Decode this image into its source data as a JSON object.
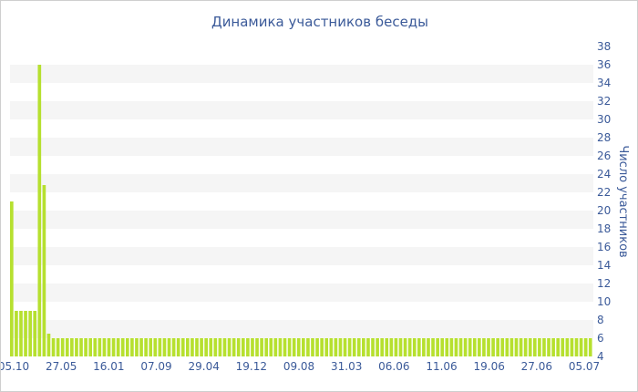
{
  "chart_data": {
    "type": "bar",
    "title": "Динамика участников беседы",
    "xlabel": "",
    "ylabel": "Число участников",
    "ylim": [
      4,
      38
    ],
    "yticks": [
      4,
      6,
      8,
      10,
      12,
      14,
      16,
      18,
      20,
      22,
      24,
      26,
      28,
      30,
      32,
      34,
      36,
      38
    ],
    "x_tick_labels": [
      "05.10",
      "27.05",
      "16.01",
      "07.09",
      "29.04",
      "19.12",
      "09.08",
      "31.03",
      "06.06",
      "11.06",
      "19.06",
      "27.06",
      "05.07"
    ],
    "grid": true,
    "legend": "none",
    "bar_color": "#b6e02f",
    "band_color": "#f5f5f5",
    "text_color": "#3b5a99",
    "series": [
      {
        "values": [
          21,
          9,
          9,
          9,
          9,
          9,
          36,
          22.8,
          6.5,
          6,
          6,
          6,
          6,
          6,
          6,
          6,
          6,
          6,
          6,
          6,
          6,
          6,
          6,
          6,
          6,
          6,
          6,
          6,
          6,
          6,
          6,
          6,
          6,
          6,
          6,
          6,
          6,
          6,
          6,
          6,
          6,
          6,
          6,
          6,
          6,
          6,
          6,
          6,
          6,
          6,
          6,
          6,
          6,
          6,
          6,
          6,
          6,
          6,
          6,
          6,
          6,
          6,
          6,
          6,
          6,
          6,
          6,
          6,
          6,
          6,
          6,
          6,
          6,
          6,
          6,
          6,
          6,
          6,
          6,
          6,
          6,
          6,
          6,
          6,
          6,
          6,
          6,
          6,
          6,
          6,
          6,
          6,
          6,
          6,
          6,
          6,
          6,
          6,
          6,
          6,
          6,
          6,
          6,
          6,
          6,
          6,
          6,
          6,
          6,
          6,
          6,
          6,
          6,
          6,
          6,
          6,
          6,
          6,
          6,
          6,
          6,
          6,
          6,
          6,
          6,
          6
        ]
      }
    ]
  }
}
